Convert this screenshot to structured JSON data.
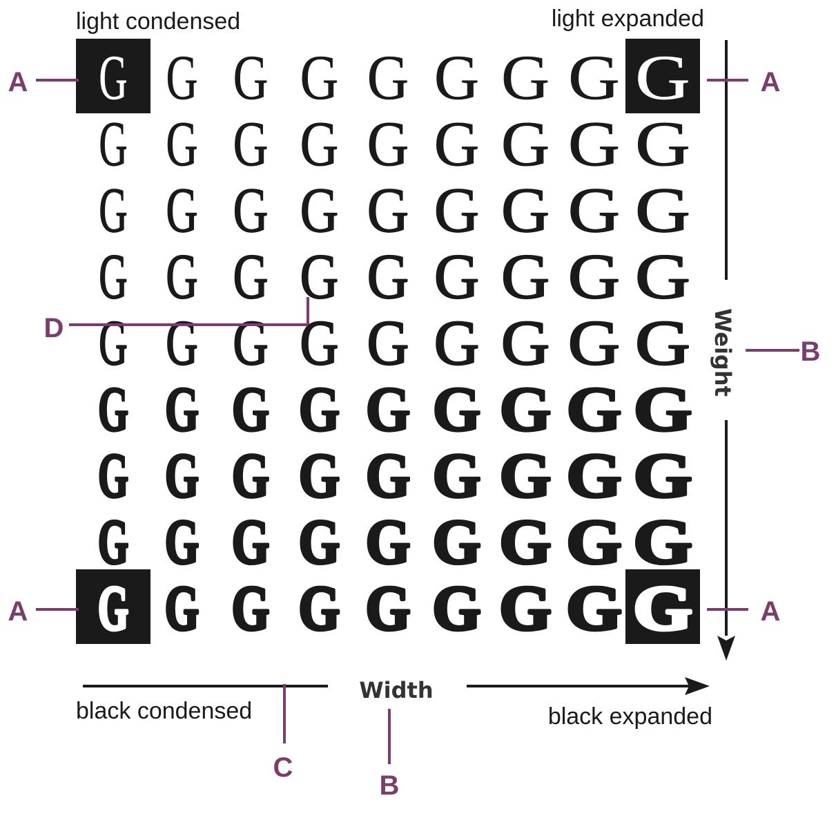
{
  "corner_labels": {
    "light_condensed": "light condensed",
    "light_expanded": "light expanded",
    "black_condensed": "black condensed",
    "black_expanded": "black expanded"
  },
  "axis_labels": {
    "width": "Width",
    "weight": "Weight"
  },
  "callouts": {
    "a": "A",
    "b": "B",
    "c": "C",
    "d": "D"
  },
  "grid": {
    "glyph": "G",
    "rows": 9,
    "columns": 9,
    "highlighted_corners": [
      "top-left",
      "top-right",
      "bottom-left",
      "bottom-right"
    ]
  },
  "colors": {
    "callout": "#7b3c6e",
    "ink": "#1a1a1a",
    "highlight_box": "#1a1a1a",
    "page": "#ffffff"
  }
}
